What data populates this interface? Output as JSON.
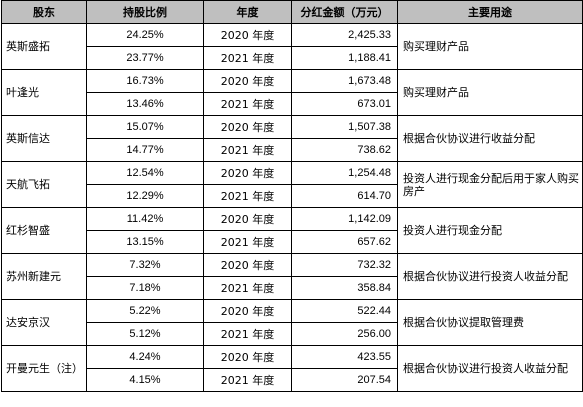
{
  "table": {
    "headers": {
      "holder": "股东",
      "ratio": "持股比例",
      "year": "年度",
      "amount": "分红金额（万元）",
      "purpose": "主要用途"
    },
    "groups": [
      {
        "holder": "英斯盛拓",
        "purpose": "购买理财产品",
        "rows": [
          {
            "ratio": "24.25%",
            "year": "2020 年度",
            "amount": "2,425.33"
          },
          {
            "ratio": "23.77%",
            "year": "2021 年度",
            "amount": "1,188.41"
          }
        ]
      },
      {
        "holder": "叶逢光",
        "purpose": "购买理财产品",
        "rows": [
          {
            "ratio": "16.73%",
            "year": "2020 年度",
            "amount": "1,673.48"
          },
          {
            "ratio": "13.46%",
            "year": "2021 年度",
            "amount": "673.01"
          }
        ]
      },
      {
        "holder": "英斯信达",
        "purpose": "根据合伙协议进行收益分配",
        "rows": [
          {
            "ratio": "15.07%",
            "year": "2020 年度",
            "amount": "1,507.38"
          },
          {
            "ratio": "14.77%",
            "year": "2021 年度",
            "amount": "738.62"
          }
        ]
      },
      {
        "holder": "天航飞拓",
        "purpose": "投资人进行现金分配后用于家人购买房产",
        "rows": [
          {
            "ratio": "12.54%",
            "year": "2020 年度",
            "amount": "1,254.48"
          },
          {
            "ratio": "12.29%",
            "year": "2021 年度",
            "amount": "614.70"
          }
        ]
      },
      {
        "holder": "红杉智盛",
        "purpose": "投资人进行现金分配",
        "rows": [
          {
            "ratio": "11.42%",
            "year": "2020 年度",
            "amount": "1,142.09"
          },
          {
            "ratio": "13.15%",
            "year": "2021 年度",
            "amount": "657.62"
          }
        ]
      },
      {
        "holder": "苏州新建元",
        "purpose": "根据合伙协议进行投资人收益分配",
        "rows": [
          {
            "ratio": "7.32%",
            "year": "2020 年度",
            "amount": "732.32"
          },
          {
            "ratio": "7.18%",
            "year": "2021 年度",
            "amount": "358.84"
          }
        ]
      },
      {
        "holder": "达安京汉",
        "purpose": "根据合伙协议提取管理费",
        "rows": [
          {
            "ratio": "5.22%",
            "year": "2020 年度",
            "amount": "522.44"
          },
          {
            "ratio": "5.12%",
            "year": "2021 年度",
            "amount": "256.00"
          }
        ]
      },
      {
        "holder": "开曼元生（注）",
        "purpose": "根据合伙协议进行投资人收益分配",
        "rows": [
          {
            "ratio": "4.24%",
            "year": "2020 年度",
            "amount": "423.55"
          },
          {
            "ratio": "4.15%",
            "year": "2021 年度",
            "amount": "207.54"
          }
        ]
      }
    ]
  }
}
